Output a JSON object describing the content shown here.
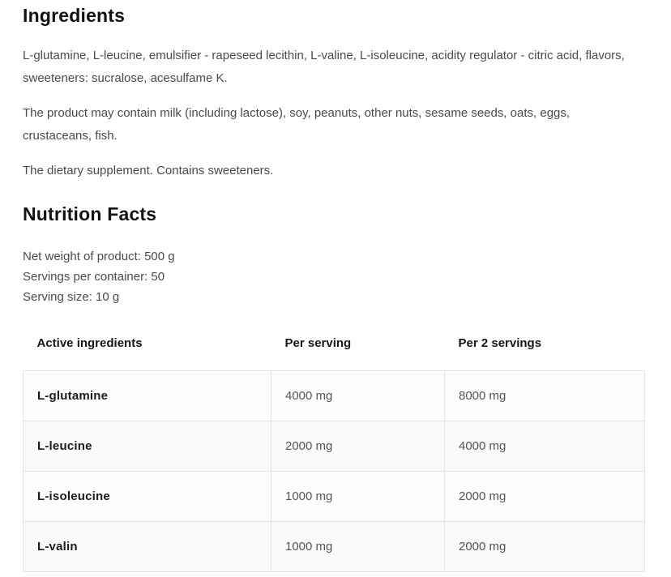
{
  "ingredients": {
    "title": "Ingredients",
    "paragraphs": [
      "L-glutamine, L-leucine, emulsifier - rapeseed lecithin, L-valine, L-isoleucine, acidity regulator - citric acid, flavors, sweeteners: sucralose, acesulfame K.",
      "The product may contain milk (including lactose), soy, peanuts, other nuts, sesame seeds, oats, eggs, crustaceans, fish.",
      "The dietary supplement. Contains sweeteners."
    ]
  },
  "nutrition": {
    "title": "Nutrition Facts",
    "details": [
      "Net weight of product: 500 g",
      "Servings per container: 50",
      "Serving size: 10 g"
    ],
    "table": {
      "headers": [
        "Active ingredients",
        "Per serving",
        "Per 2 servings"
      ],
      "rows": [
        {
          "ingredient": "L-glutamine",
          "per_serving": "4000 mg",
          "per_2_servings": "8000 mg"
        },
        {
          "ingredient": "L-leucine",
          "per_serving": "2000 mg",
          "per_2_servings": "4000 mg"
        },
        {
          "ingredient": "L-isoleucine",
          "per_serving": "1000 mg",
          "per_2_servings": "2000 mg"
        },
        {
          "ingredient": "L-valin",
          "per_serving": "1000 mg",
          "per_2_servings": "2000 mg"
        }
      ]
    }
  },
  "colors": {
    "heading_text": "#121212",
    "body_text": "#4b4b4b",
    "table_border": "#e3e3e3",
    "row_alt_background": "#fafafa"
  }
}
